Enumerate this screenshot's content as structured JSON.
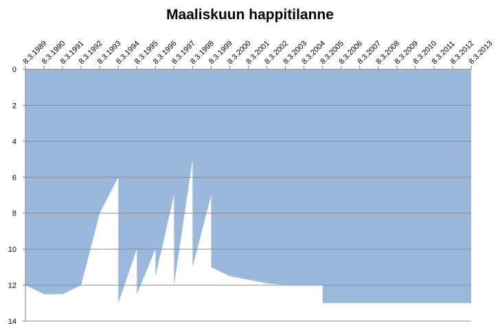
{
  "chart_data": {
    "type": "area",
    "title": "Maaliskuun happitilanne",
    "xlabel": "",
    "ylabel": "",
    "x_axis_position": "top",
    "y_axis_inverted": true,
    "ylim": [
      0,
      14
    ],
    "y_ticks": [
      "0",
      "2",
      "4",
      "6",
      "8",
      "10",
      "12",
      "14"
    ],
    "grid": true,
    "categories": [
      "8.3.1989",
      "8.3.1990",
      "8.3.1991",
      "8.3.1992",
      "8.3.1993",
      "8.3.1994",
      "8.3.1995",
      "8.3.1996",
      "8.3.1997",
      "8.3.1998",
      "8.3.1999",
      "8.3.2000",
      "8.3.2001",
      "8.3.2002",
      "8.3.2003",
      "8.3.2004",
      "8.3.2005",
      "8.3.2006",
      "8.3.2007",
      "8.3.2008",
      "8.3.2009",
      "8.3.2010",
      "8.3.2011",
      "8.3.2012",
      "8.3.2013"
    ],
    "series": [
      {
        "color": "#9ab7dc",
        "points": [
          {
            "x": "1989-03-08",
            "y": 12.0
          },
          {
            "x": "1990-03-08",
            "y": 12.5
          },
          {
            "x": "1991-03-08",
            "y": 12.5
          },
          {
            "x": "1992-03-08",
            "y": 12.0
          },
          {
            "x": "1993-03-08",
            "y": 8.0
          },
          {
            "x": "1994-03-08",
            "y": 6.0
          },
          {
            "x": "1994-03-09",
            "y": 13.0
          },
          {
            "x": "1995-03-08",
            "y": 10.0
          },
          {
            "x": "1995-03-09",
            "y": 12.5
          },
          {
            "x": "1996-03-08",
            "y": 10.0
          },
          {
            "x": "1996-03-09",
            "y": 11.5
          },
          {
            "x": "1997-03-08",
            "y": 7.0
          },
          {
            "x": "1997-03-09",
            "y": 12.0
          },
          {
            "x": "1998-03-08",
            "y": 5.0
          },
          {
            "x": "1998-03-09",
            "y": 11.0
          },
          {
            "x": "1999-03-08",
            "y": 7.0
          },
          {
            "x": "1999-03-09",
            "y": 11.0
          },
          {
            "x": "2000-03-08",
            "y": 11.5
          },
          {
            "x": "2001-03-08",
            "y": 11.7
          },
          {
            "x": "2002-03-08",
            "y": 11.9
          },
          {
            "x": "2003-03-08",
            "y": 12.0
          },
          {
            "x": "2003-03-09",
            "y": 3.0
          },
          {
            "x": "2003-03-10",
            "y": 12.0
          },
          {
            "x": "2004-03-08",
            "y": 12.0
          },
          {
            "x": "2005-03-08",
            "y": 12.0
          },
          {
            "x": "2005-03-09",
            "y": 13.0
          },
          {
            "x": "2013-03-08",
            "y": 13.0
          }
        ]
      }
    ]
  },
  "colors": {
    "area_fill": "#9ab7dc",
    "grid_line": "#8a8a8a",
    "axis_line": "#808080"
  }
}
